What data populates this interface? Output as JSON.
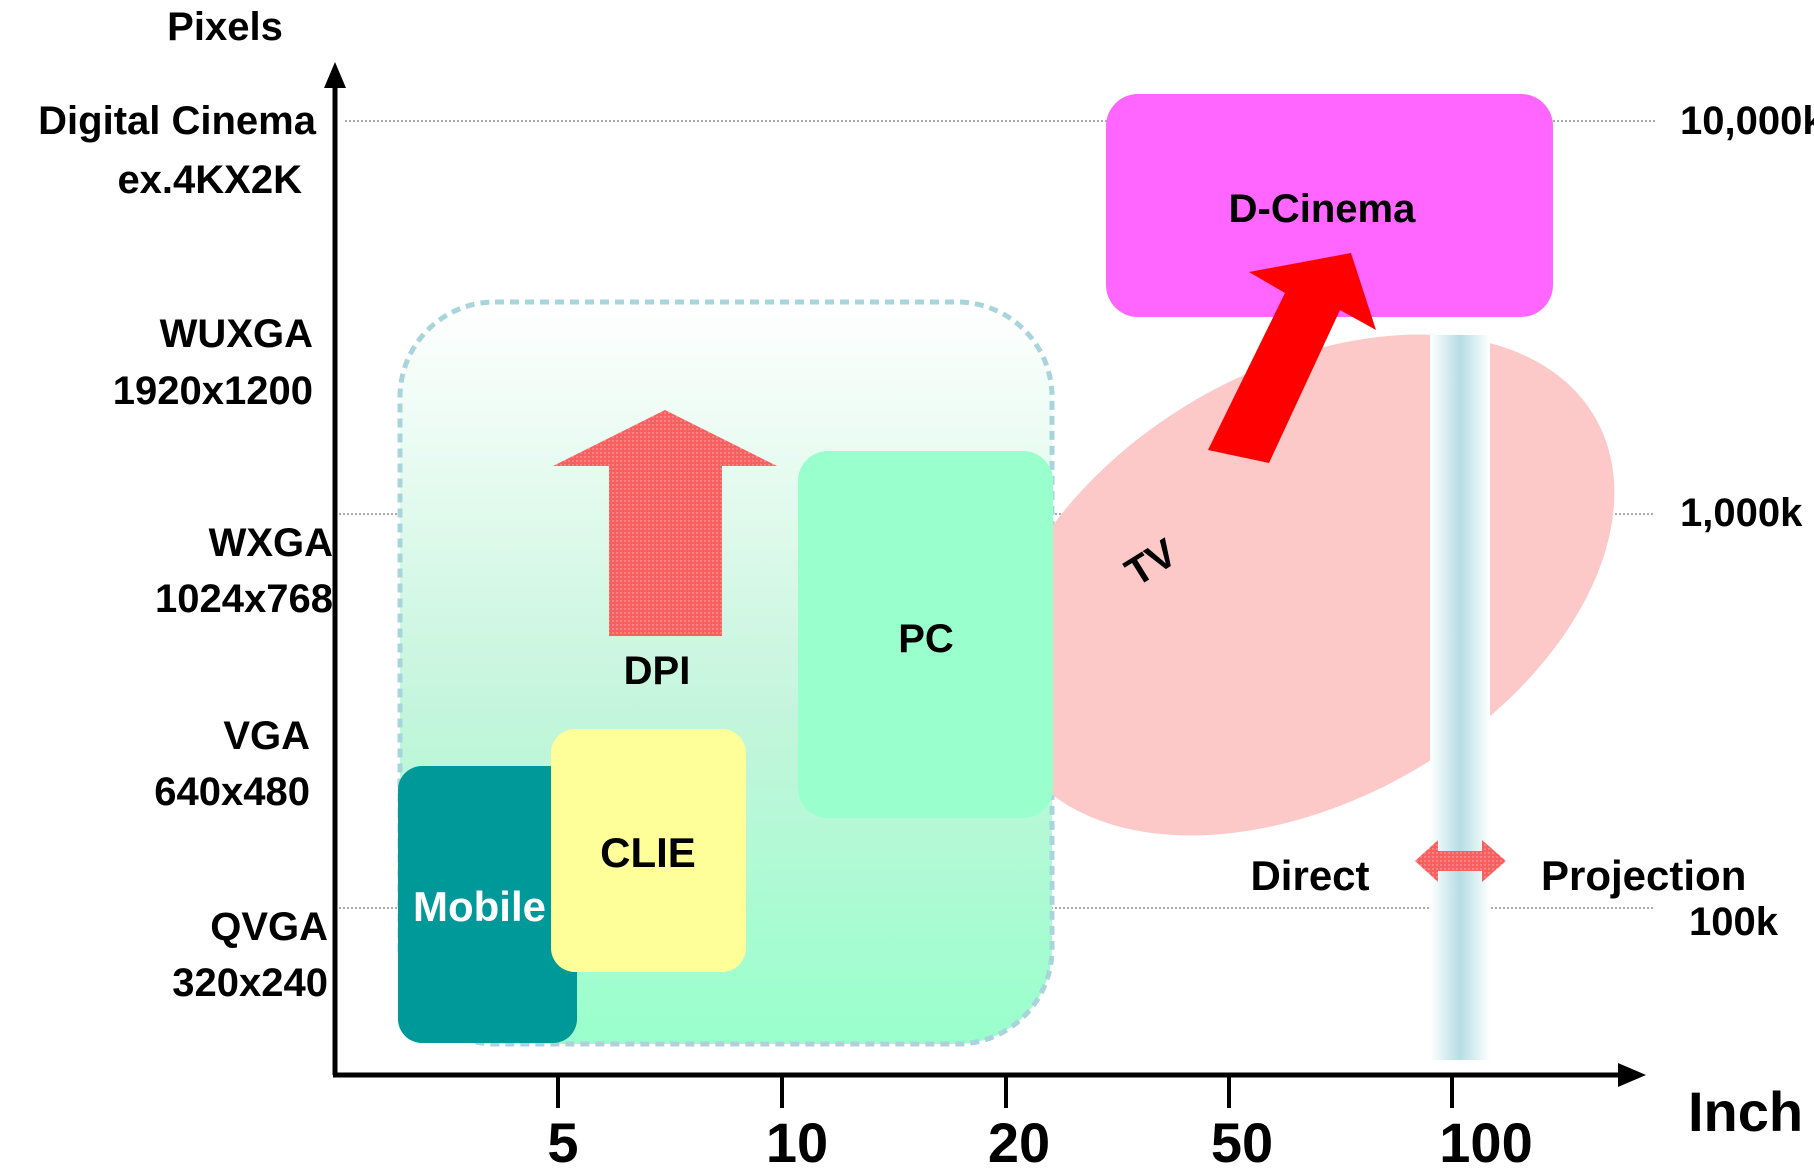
{
  "y_axis": {
    "title": "Pixels",
    "levels": [
      {
        "name": "Digital Cinema",
        "detail": "ex.4KX2K"
      },
      {
        "name": "WUXGA",
        "detail": "1920x1200"
      },
      {
        "name": "WXGA",
        "detail": "1024x768"
      },
      {
        "name": "VGA",
        "detail": "640x480"
      },
      {
        "name": "QVGA",
        "detail": "320x240"
      }
    ]
  },
  "x_axis": {
    "title": "Inch",
    "ticks": [
      "5",
      "10",
      "20",
      "50",
      "100"
    ]
  },
  "right_scale": [
    "10,000k",
    "1,000k",
    "100k"
  ],
  "regions": {
    "d_cinema": "D-Cinema",
    "tv": "TV",
    "pc": "PC",
    "clie": "CLIE",
    "mobile": "Mobile",
    "dpi": "DPI"
  },
  "divider": {
    "left": "Direct",
    "right": "Projection"
  },
  "colors": {
    "d_cinema": "#ff66ff",
    "tv": "#fcc8c8",
    "pc": "#99ffcc",
    "clie": "#ffff99",
    "mobile": "#009999",
    "arrow_red": "#ff0000",
    "dpi_arrow": "#f86060",
    "dashed_border": "#a8d4dc",
    "divider_bar": "#b4dee4"
  }
}
